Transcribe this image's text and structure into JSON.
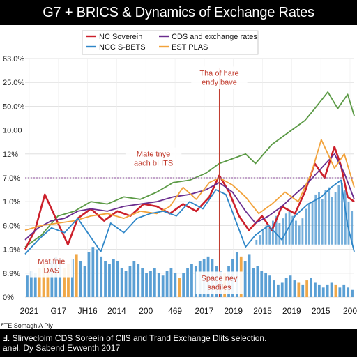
{
  "title": "G7 + BRICS & Dynamics of Exchange Rates",
  "caption": {
    "line1": "Ⅎ. Slirvecloim CDS Soreein of CllS and Trand Exchange Dlits selection.",
    "line2": "anel. Dy Sabend Evwenth 2017"
  },
  "footer_note": "ᴱTE Somagh A Ply",
  "colors": {
    "red": "#cc1f2a",
    "purple": "#6a2c8e",
    "blue": "#2e86c8",
    "orange": "#f2a23a",
    "green": "#5b9a45",
    "bar_blue": "#5a9fd4",
    "bar_orange": "#f0a848",
    "annotation": "#c0392b"
  },
  "chart_data": {
    "type": "line",
    "title": "G7 + BRICS & Dynamics of Exchange Rates",
    "xlabel": "",
    "ylabel": "",
    "x_ticks": [
      "2021",
      "G17",
      "JH16",
      "2014",
      "200",
      "469",
      "2017",
      "2019",
      "2015",
      "2019",
      "2015",
      "200"
    ],
    "y_ticks": [
      "63.0%",
      "25.0%",
      "50.0%",
      "10.00",
      "12%",
      "7.0%",
      "1.0%",
      "6.0%",
      "1.9%",
      "8.9%",
      "0%"
    ],
    "ylim": [
      0,
      10
    ],
    "xlim": [
      0,
      100
    ],
    "grid": true,
    "legend": {
      "position": "top-center",
      "entries": [
        {
          "label": "NC Soverein",
          "color": "#cc1f2a"
        },
        {
          "label": "CDS and exchange rates",
          "color": "#6a2c8e"
        },
        {
          "label": "NCC S-BETS",
          "color": "#2e86c8"
        },
        {
          "label": "EST PLAS",
          "color": "#f2a23a"
        }
      ]
    },
    "annotations": [
      {
        "lines": [
          "Tha of hare",
          "endy bave"
        ],
        "x": 59,
        "y": 9.2
      },
      {
        "lines": [
          "Mate tnye",
          "aach bI ITS"
        ],
        "x": 39,
        "y": 5.8
      },
      {
        "lines": [
          "Mat fnie",
          "DAS"
        ],
        "x": 8,
        "y": 1.3
      },
      {
        "lines": [
          "Space ney",
          "sadiles"
        ],
        "x": 59,
        "y": 0.6
      }
    ],
    "reference_line": {
      "y": 5.0
    },
    "vertical_marker": {
      "x": 59
    },
    "series": [
      {
        "name": "",
        "color": "#5b9a45",
        "x": [
          0,
          5,
          10,
          15,
          20,
          25,
          30,
          35,
          40,
          45,
          50,
          55,
          59,
          63,
          67,
          70,
          75,
          80,
          85,
          88,
          92,
          95,
          98,
          100
        ],
        "values": [
          2.1,
          2.6,
          3.4,
          3.6,
          4.0,
          3.9,
          4.2,
          4.1,
          4.4,
          4.8,
          4.9,
          5.2,
          5.6,
          5.8,
          6.0,
          5.6,
          6.4,
          6.9,
          7.4,
          7.9,
          8.6,
          7.9,
          8.5,
          7.6
        ]
      },
      {
        "name": "",
        "color": "#cc1f2a",
        "x": [
          0,
          3,
          6,
          10,
          13,
          16,
          20,
          24,
          28,
          32,
          36,
          40,
          44,
          48,
          52,
          56,
          59,
          62,
          65,
          68,
          72,
          75,
          78,
          82,
          85,
          88,
          91,
          94,
          96,
          98,
          100
        ],
        "values": [
          2.0,
          2.8,
          4.3,
          3.1,
          2.2,
          3.3,
          3.7,
          3.2,
          3.6,
          3.4,
          3.9,
          3.8,
          3.5,
          3.9,
          3.6,
          4.2,
          5.1,
          4.4,
          3.4,
          2.8,
          3.4,
          2.8,
          3.8,
          3.5,
          4.4,
          5.6,
          5.0,
          6.3,
          5.5,
          4.2,
          4.0
        ]
      },
      {
        "name": "",
        "color": "#6a2c8e",
        "x": [
          0,
          4,
          8,
          12,
          16,
          20,
          25,
          30,
          35,
          40,
          45,
          50,
          55,
          59,
          63,
          67,
          70,
          74,
          78,
          82,
          86,
          90,
          94,
          97,
          100
        ],
        "values": [
          2.4,
          2.9,
          3.2,
          3.3,
          3.6,
          3.7,
          3.6,
          3.8,
          3.9,
          4.0,
          4.2,
          4.3,
          4.5,
          4.8,
          4.4,
          3.6,
          3.1,
          3.4,
          3.8,
          4.3,
          4.8,
          5.4,
          6.0,
          5.2,
          4.1
        ]
      },
      {
        "name": "",
        "color": "#f2a23a",
        "x": [
          0,
          5,
          10,
          15,
          20,
          25,
          30,
          35,
          40,
          44,
          48,
          52,
          56,
          59,
          63,
          67,
          71,
          75,
          79,
          83,
          87,
          90,
          94,
          97,
          100
        ],
        "values": [
          2.8,
          3.0,
          3.1,
          3.2,
          3.4,
          3.5,
          3.3,
          3.6,
          3.5,
          3.8,
          4.6,
          4.1,
          4.8,
          5.0,
          4.7,
          4.2,
          3.5,
          3.9,
          4.4,
          4.0,
          5.2,
          6.6,
          5.4,
          6.0,
          4.6
        ]
      },
      {
        "name": "",
        "color": "#2e86c8",
        "x": [
          0,
          4,
          8,
          12,
          16,
          20,
          23,
          26,
          30,
          34,
          38,
          42,
          46,
          50,
          54,
          58,
          61,
          64,
          67,
          70,
          74,
          78,
          82,
          86,
          90,
          93,
          96,
          98,
          100
        ],
        "values": [
          1.8,
          2.4,
          2.9,
          2.7,
          3.3,
          2.5,
          1.9,
          3.1,
          2.7,
          3.3,
          3.5,
          3.6,
          3.4,
          4.0,
          3.7,
          4.5,
          4.3,
          3.2,
          2.1,
          2.6,
          3.0,
          2.4,
          3.4,
          3.9,
          4.2,
          4.6,
          4.9,
          3.0,
          1.9
        ]
      }
    ],
    "bars": {
      "color_main": "#5a9fd4",
      "color_highlight": "#f0a848",
      "highlight_indices": [
        3,
        4,
        5,
        9,
        10,
        12,
        37,
        48,
        52,
        66,
        68,
        75
      ],
      "values": [
        0.9,
        1.1,
        1.0,
        1.2,
        1.4,
        1.2,
        1.5,
        1.7,
        1.6,
        1.2,
        1.4,
        1.6,
        1.8,
        1.5,
        1.3,
        1.9,
        2.1,
        2.0,
        1.7,
        1.5,
        1.4,
        1.6,
        1.5,
        1.2,
        1.1,
        1.3,
        1.5,
        1.4,
        1.2,
        1.0,
        1.1,
        1.2,
        1.0,
        0.9,
        1.1,
        1.2,
        1.0,
        0.8,
        1.0,
        1.2,
        1.4,
        1.3,
        1.5,
        1.6,
        1.7,
        1.6,
        1.3,
        1.1,
        1.0,
        1.3,
        1.6,
        1.9,
        1.7,
        1.5,
        1.8,
        1.2,
        1.3,
        1.1,
        1.0,
        0.9,
        0.7,
        0.5,
        0.6,
        0.8,
        0.9,
        0.7,
        0.6,
        0.5,
        0.7,
        0.8,
        0.6,
        0.5,
        0.4,
        0.5,
        0.6,
        0.5,
        0.4,
        0.5,
        0.4,
        0.3
      ],
      "upper_values": [
        2.4,
        2.6,
        2.8,
        3.0,
        2.9,
        3.2,
        3.4,
        3.1,
        3.3,
        3.5,
        3.6,
        3.4,
        3.2,
        3.0,
        3.3,
        3.7,
        3.9,
        4.0,
        4.3,
        4.4,
        4.1,
        4.5,
        4.6,
        4.2,
        4.4,
        4.7,
        4.8,
        4.5,
        4.0,
        3.6
      ],
      "upper_start_x": 70
    }
  }
}
